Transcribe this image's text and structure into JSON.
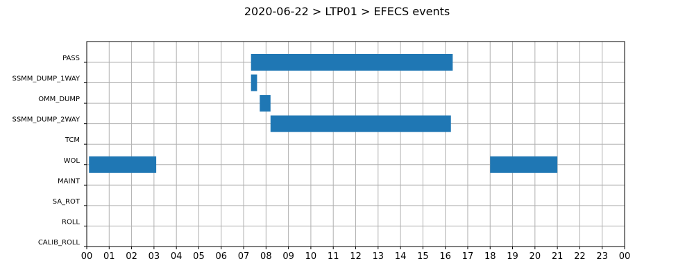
{
  "chart_data": {
    "type": "timeline",
    "title": "2020-06-22 > LTP01 > EFECS events",
    "xlabel": "",
    "ylabel": "",
    "x_range_hours": [
      0,
      24
    ],
    "x_tick_labels": [
      "00",
      "01",
      "02",
      "03",
      "04",
      "05",
      "06",
      "07",
      "08",
      "09",
      "10",
      "11",
      "12",
      "13",
      "14",
      "15",
      "16",
      "17",
      "18",
      "19",
      "20",
      "21",
      "22",
      "23",
      "00"
    ],
    "categories": [
      "PASS",
      "SSMM_DUMP_1WAY",
      "OMM_DUMP",
      "SSMM_DUMP_2WAY",
      "TCM",
      "WOL",
      "MAINT",
      "SA_ROT",
      "ROLL",
      "CALIB_ROLL"
    ],
    "grid": true,
    "bar_color": "#1f77b4",
    "intervals": [
      {
        "category": "PASS",
        "start_hour": 7.33,
        "end_hour": 16.33
      },
      {
        "category": "SSMM_DUMP_1WAY",
        "start_hour": 7.33,
        "end_hour": 7.6
      },
      {
        "category": "OMM_DUMP",
        "start_hour": 7.72,
        "end_hour": 8.2
      },
      {
        "category": "SSMM_DUMP_2WAY",
        "start_hour": 8.2,
        "end_hour": 16.25
      },
      {
        "category": "WOL",
        "start_hour": 0.1,
        "end_hour": 3.1
      },
      {
        "category": "WOL",
        "start_hour": 18.0,
        "end_hour": 21.0
      }
    ]
  }
}
